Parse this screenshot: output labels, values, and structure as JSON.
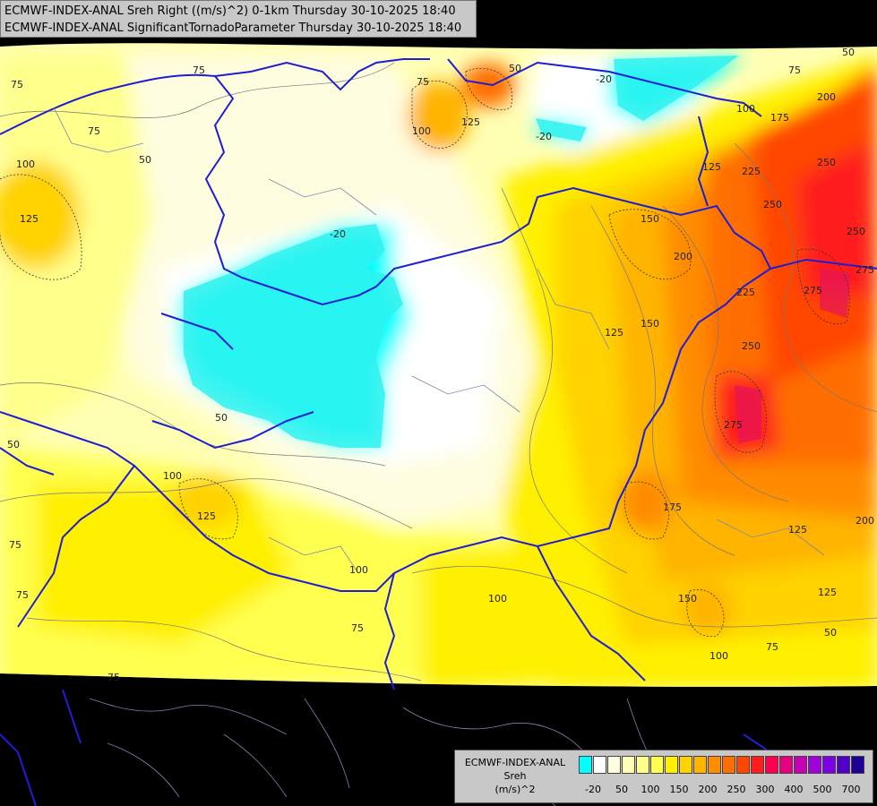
{
  "title": {
    "line1": "ECMWF-INDEX-ANAL Sreh Right ((m/s)^2) 0-1km Thursday 30-10-2025 18:40",
    "line2": "ECMWF-INDEX-ANAL SignificantTornadoParameter Thursday 30-10-2025 18:40"
  },
  "legend": {
    "line1": "ECMWF-INDEX-ANAL",
    "line2": "Sreh",
    "line3": "(m/s)^2",
    "colors": [
      "#00ffff",
      "#ffffff",
      "#fffde0",
      "#ffffb4",
      "#ffff8c",
      "#ffff50",
      "#fff000",
      "#ffd200",
      "#ffb400",
      "#ff8c00",
      "#ff6e00",
      "#ff4600",
      "#ff1e1e",
      "#ff0050",
      "#e6007d",
      "#c800b4",
      "#a000dc",
      "#7d00e6",
      "#5000c8",
      "#1e0096"
    ],
    "ticks": [
      "-20",
      "50",
      "100",
      "150",
      "200",
      "250",
      "300",
      "400",
      "500",
      "700"
    ]
  },
  "contour_labels": [
    {
      "text": "75",
      "pos": "nw"
    },
    {
      "text": "100",
      "pos": "nw"
    },
    {
      "text": "125",
      "pos": "nw"
    },
    {
      "text": "50",
      "pos": "w"
    },
    {
      "text": "-20",
      "pos": "center"
    },
    {
      "text": "200",
      "pos": "e"
    },
    {
      "text": "250",
      "pos": "e"
    },
    {
      "text": "275",
      "pos": "e"
    },
    {
      "text": "225",
      "pos": "e"
    },
    {
      "text": "175",
      "pos": "e"
    },
    {
      "text": "150",
      "pos": "e"
    }
  ]
}
